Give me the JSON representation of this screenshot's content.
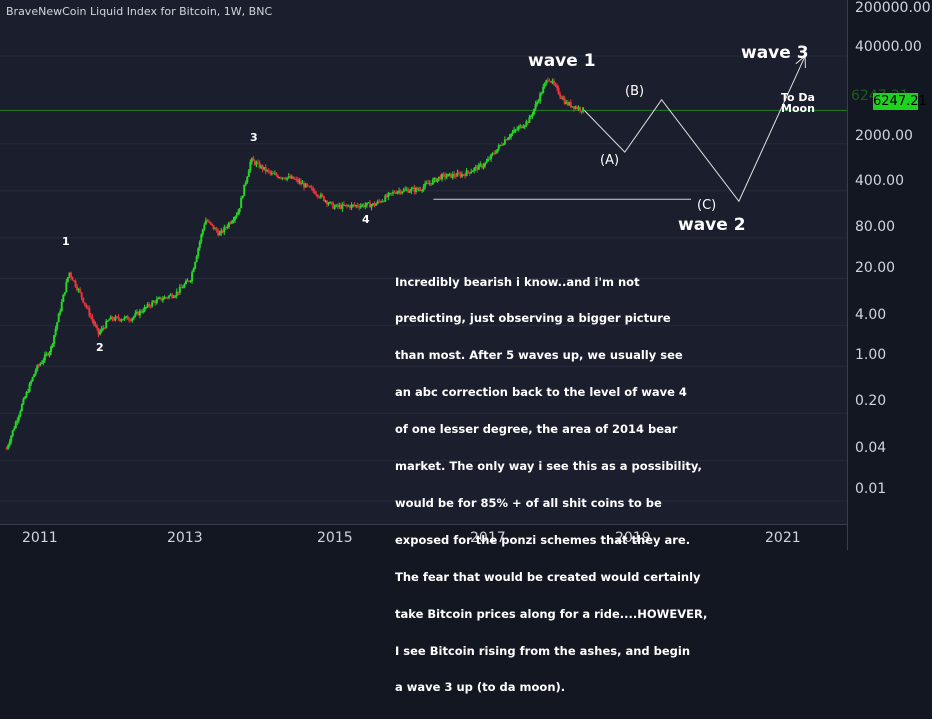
{
  "title": "BraveNewCoin Liquid Index for Bitcoin, 1W, BNC",
  "price_label": "6247.21",
  "price_label_ghost": "6247.21",
  "y_ticks": [
    "200000.00",
    "40000.00",
    "6247.21",
    "2000.00",
    "400.00",
    "80.00",
    "20.00",
    "4.00",
    "1.00",
    "0.20",
    "0.04",
    "0.01"
  ],
  "x_ticks": [
    "2011",
    "2013",
    "2015",
    "2017",
    "2019",
    "2021"
  ],
  "wave_labels": {
    "w1": "1",
    "w2": "2",
    "w3": "3",
    "w4": "4",
    "wave1": "wave 1",
    "wave2": "wave 2",
    "wave3": "wave 3"
  },
  "abc_labels": {
    "a": "(A)",
    "b": "(B)",
    "c": "(C)"
  },
  "moon_text": {
    "line1": "To Da",
    "line2": "Moon"
  },
  "note_lines": [
    "Incredibly bearish i know..and i'm not",
    "predicting, just observing a bigger picture",
    "than most. After 5 waves up, we usually see",
    "an abc correction back to the level of wave 4",
    "of one lesser degree, the area of 2014 bear",
    "market. The only way i see this as a possibility,",
    "would be for 85% + of all shit coins to be",
    "exposed for the ponzi schemes that they are.",
    "The fear that would be created would certainly",
    "take Bitcoin prices along for a ride....HOWEVER,",
    "I see Bitcoin rising from the ashes, and begin",
    "a wave 3 up (to da moon)."
  ],
  "colors": {
    "up": "#26d626",
    "down": "#e8343a",
    "background": "#1b1f2d",
    "price_line": "#1ed31e",
    "projection": "#e0e0e0"
  },
  "chart_data": {
    "type": "line",
    "title": "BraveNewCoin Liquid Index for Bitcoin, 1W, BNC",
    "y_scale": "log",
    "ylim": [
      0.01,
      200000
    ],
    "x_range": [
      "2010",
      "2022"
    ],
    "series": [
      {
        "x": [
          2010.6,
          2010.8,
          2011.0,
          2011.2,
          2011.45,
          2011.6,
          2011.85,
          2012.0,
          2012.3,
          2012.6,
          2012.9,
          2013.1,
          2013.3,
          2013.5,
          2013.75,
          2013.92,
          2014.2,
          2014.5,
          2014.8,
          2015.05,
          2015.3,
          2015.6,
          2015.9,
          2016.2,
          2016.5,
          2016.8,
          2017.1,
          2017.4,
          2017.7,
          2017.96,
          2018.2,
          2018.45
        ],
        "values": [
          0.06,
          0.25,
          0.9,
          1.8,
          25,
          12,
          3.0,
          5,
          5.2,
          9,
          12,
          20,
          150,
          90,
          200,
          1150,
          700,
          600,
          380,
          230,
          240,
          250,
          400,
          420,
          650,
          700,
          1000,
          2500,
          4500,
          19500,
          8000,
          6247
        ]
      }
    ],
    "projection": [
      {
        "label": "(A)",
        "x": 2019.0,
        "value": 1500
      },
      {
        "label": "(B)",
        "x": 2019.5,
        "value": 9000
      },
      {
        "label": "(C)",
        "x": 2020.55,
        "value": 280
      },
      {
        "label": "wave 3",
        "x": 2021.45,
        "value": 40000
      }
    ],
    "horizontal_line": {
      "value": 300,
      "x": [
        2016.4,
        2019.9
      ]
    }
  }
}
